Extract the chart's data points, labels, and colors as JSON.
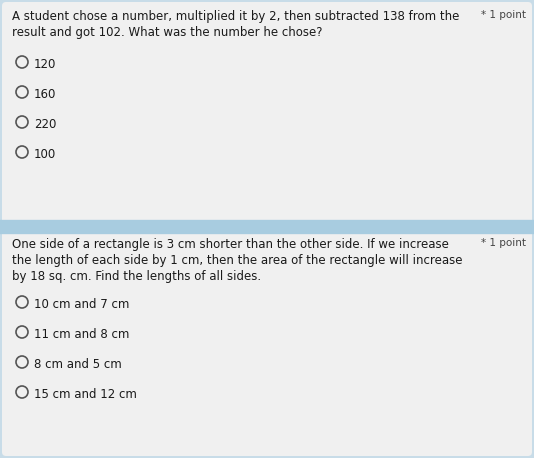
{
  "bg_color": "#c8dce8",
  "card1_bg": "#f0f0f0",
  "card2_bg": "#f0f0f0",
  "separator_color": "#a8cce0",
  "q1_text_line1": "A student chose a number, multiplied it by 2, then subtracted 138 from the",
  "q1_text_line2": "result and got 102. What was the number he chose?",
  "q1_badge": "* 1 point",
  "q1_options": [
    "120",
    "160",
    "220",
    "100"
  ],
  "q2_text_line1": "One side of a rectangle is 3 cm shorter than the other side. If we increase",
  "q2_text_line2": "the length of each side by 1 cm, then the area of the rectangle will increase",
  "q2_text_line3": "by 18 sq. cm. Find the lengths of all sides.",
  "q2_badge": "* 1 point",
  "q2_options": [
    "10 cm and 7 cm",
    "11 cm and 8 cm",
    "8 cm and 5 cm",
    "15 cm and 12 cm"
  ],
  "text_color": "#1a1a1a",
  "badge_color": "#444444",
  "option_text_color": "#1a1a1a",
  "circle_edge_color": "#555555",
  "font_size_question": 8.5,
  "font_size_option": 8.5,
  "font_size_badge": 7.5
}
